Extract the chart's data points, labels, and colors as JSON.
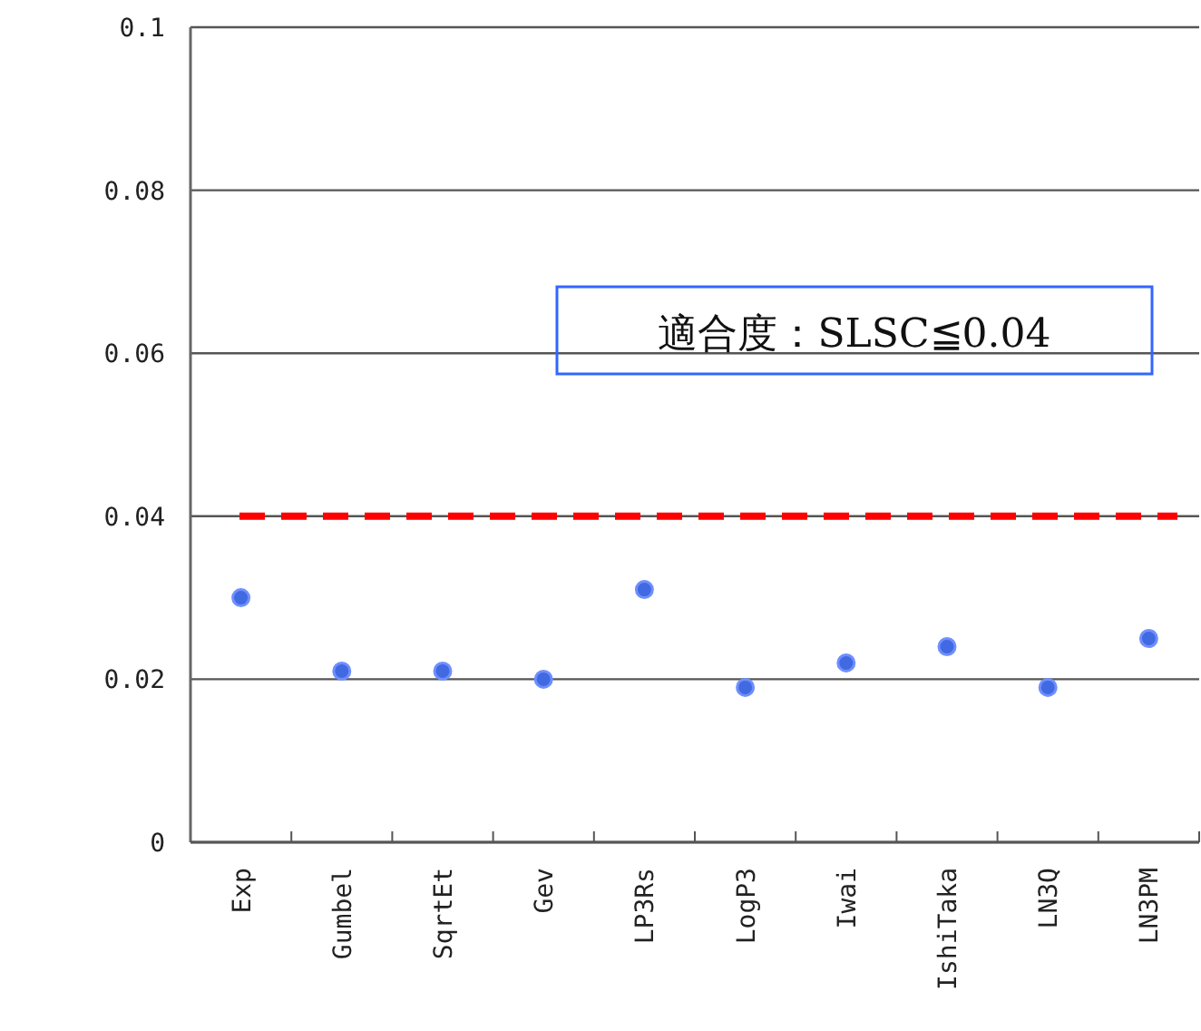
{
  "chart_data": {
    "type": "scatter",
    "categories": [
      "Exp",
      "Gumbel",
      "SqrtEt",
      "Gev",
      "LP3Rs",
      "LogP3",
      "Iwai",
      "IshiTaka",
      "LN3Q",
      "LN3PM"
    ],
    "series": [
      {
        "color": "#4169e1",
        "values": [
          0.03,
          0.021,
          0.021,
          0.02,
          0.031,
          0.019,
          0.022,
          0.024,
          0.019,
          0.025
        ]
      }
    ],
    "ylim": [
      0,
      0.1
    ],
    "yticks": [
      0,
      0.02,
      0.04,
      0.06,
      0.08,
      0.1
    ],
    "grid": "y",
    "marker": "circle",
    "annotations": [
      "適合度：SLSC≦0.04"
    ],
    "ref_lines": [
      {
        "axis": "y",
        "value": 0.04,
        "color": "#ff0000",
        "line_style": "dashed"
      }
    ]
  }
}
